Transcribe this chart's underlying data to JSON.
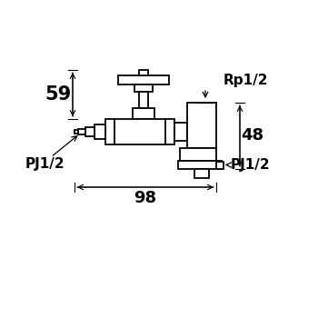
{
  "bg_color": "#ffffff",
  "line_color": "#000000",
  "dimensions": {
    "label_59": "59",
    "label_48": "48",
    "label_98": "98",
    "label_rp": "Rp1/2",
    "label_pj_left": "PJ1/2",
    "label_pj_right": "PJ1/2"
  }
}
